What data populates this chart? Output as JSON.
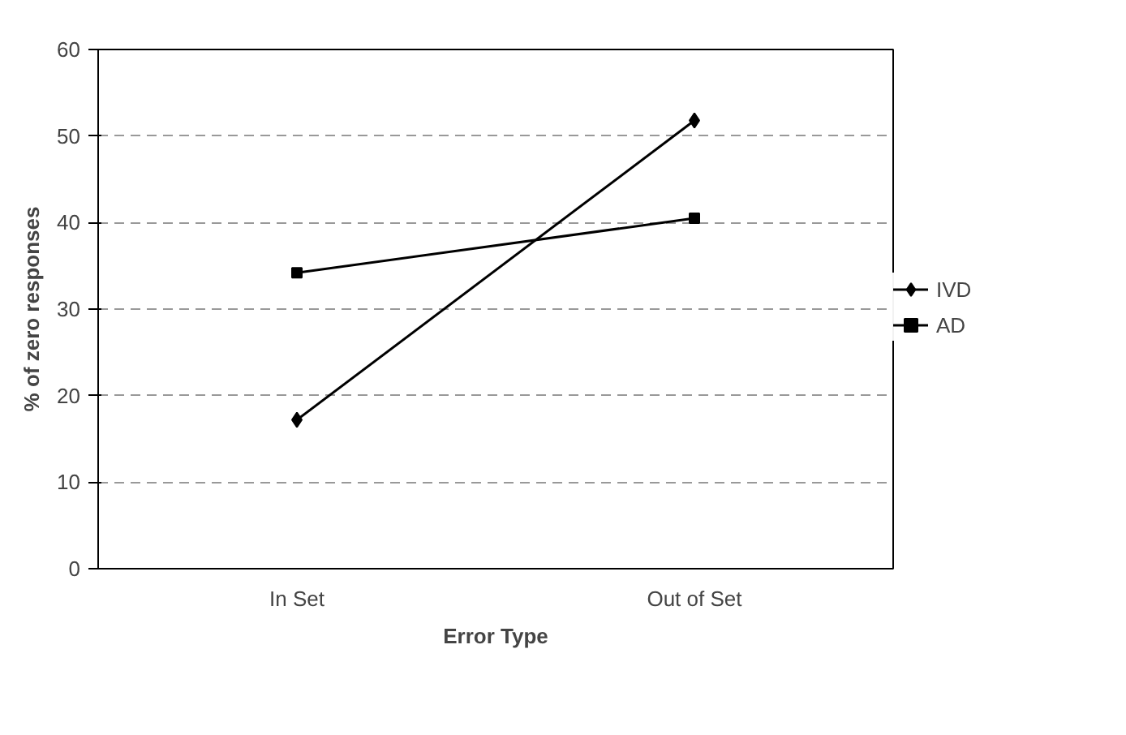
{
  "chart_data": {
    "type": "line",
    "xlabel": "Error Type",
    "ylabel": "% of zero responses",
    "categories": [
      "In Set",
      "Out of Set"
    ],
    "series": [
      {
        "name": "IVD",
        "color": "#000000",
        "values": [
          17.2,
          51.8
        ],
        "marker": "diamond"
      },
      {
        "name": "AD",
        "color": "#000000",
        "values": [
          34.2,
          40.5
        ],
        "marker": "square"
      }
    ],
    "ylim": [
      0,
      60
    ],
    "yticks": [
      0,
      10,
      20,
      30,
      40,
      50,
      60
    ],
    "grid": "y",
    "legend": "right",
    "line_style": "solid"
  }
}
